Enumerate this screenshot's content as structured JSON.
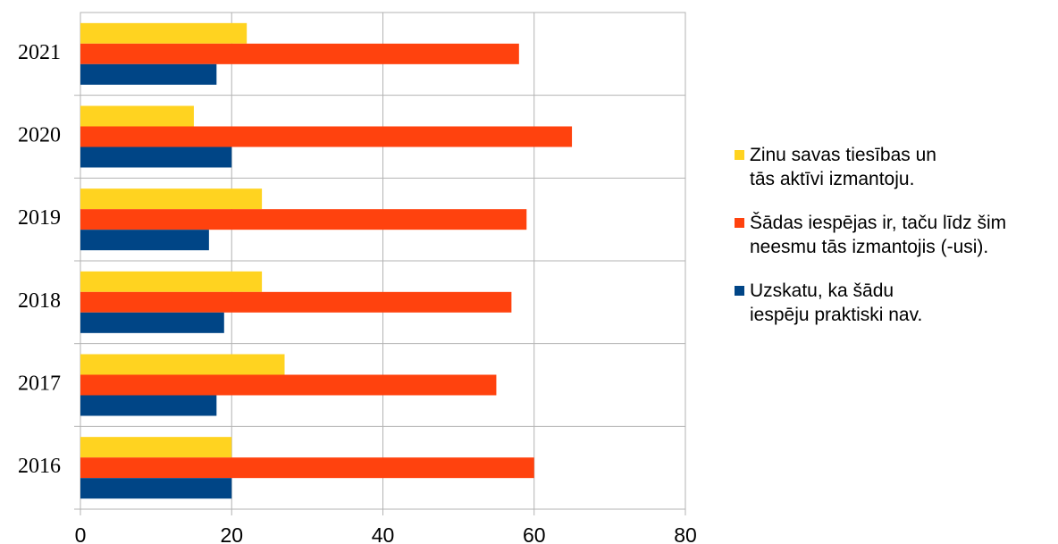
{
  "chart_data": {
    "type": "hbar",
    "categories": [
      "2016",
      "2017",
      "2018",
      "2019",
      "2020",
      "2021"
    ],
    "series": [
      {
        "name": "Zinu savas tiesības un tās aktīvi izmantoju.",
        "color": "#ffd320",
        "values": [
          20,
          27,
          24,
          24,
          15,
          22
        ]
      },
      {
        "name": "Šādas iespējas ir, taču līdz šim neesmu tās izmantojis (-usi).",
        "color": "#ff420e",
        "values": [
          60,
          55,
          57,
          59,
          65,
          58
        ]
      },
      {
        "name": "Uzskatu, ka šādu iespēju praktiski nav.",
        "color": "#004586",
        "values": [
          20,
          18,
          19,
          17,
          20,
          18
        ]
      }
    ],
    "xlim": [
      0,
      80
    ],
    "xticks": [
      0,
      20,
      40,
      60,
      80
    ],
    "grid": true,
    "legend": "right"
  }
}
